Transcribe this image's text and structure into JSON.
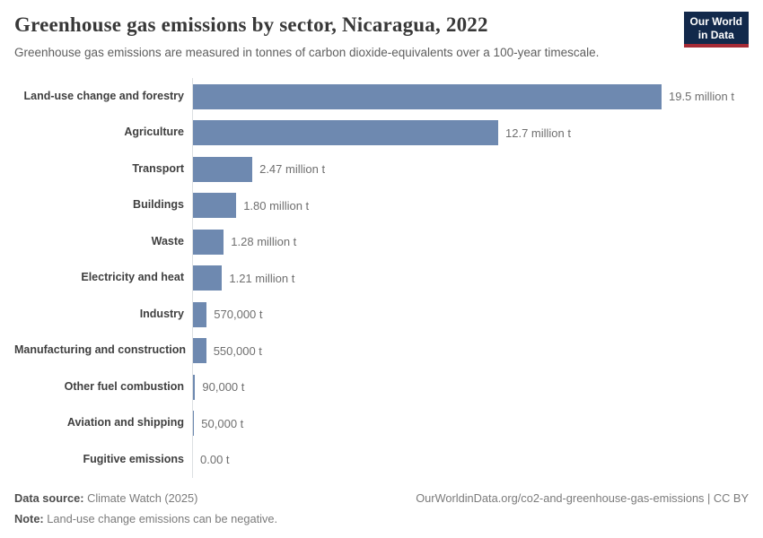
{
  "page": {
    "logo": {
      "line1": "Our World",
      "line2": "in Data",
      "bg_color": "#12294b",
      "accent_color": "#a52a35"
    },
    "header": {
      "title": "Greenhouse gas emissions by sector, Nicaragua, 2022",
      "subtitle": "Greenhouse gas emissions are measured in tonnes of carbon dioxide-equivalents over a 100-year timescale."
    },
    "footer": {
      "data_source_label": "Data source:",
      "data_source_value": "Climate Watch (2025)",
      "note_label": "Note:",
      "note_value": "Land-use change emissions can be negative.",
      "attribution": "OurWorldinData.org/co2-and-greenhouse-gas-emissions | CC BY"
    }
  },
  "chart_data": {
    "type": "bar",
    "orientation": "horizontal",
    "title": "Greenhouse gas emissions by sector, Nicaragua, 2022",
    "subtitle": "Greenhouse gas emissions are measured in tonnes of carbon dioxide-equivalents over a 100-year timescale.",
    "categories": [
      "Land-use change and forestry",
      "Agriculture",
      "Transport",
      "Buildings",
      "Waste",
      "Electricity and heat",
      "Industry",
      "Manufacturing and construction",
      "Other fuel combustion",
      "Aviation and shipping",
      "Fugitive emissions"
    ],
    "values_tonnes": [
      19500000,
      12700000,
      2470000,
      1800000,
      1280000,
      1210000,
      570000,
      550000,
      90000,
      50000,
      0
    ],
    "value_labels": [
      "19.5 million t",
      "12.7 million t",
      "2.47 million t",
      "1.80 million t",
      "1.28 million t",
      "1.21 million t",
      "570,000 t",
      "550,000 t",
      "90,000 t",
      "50,000 t",
      "0.00 t"
    ],
    "xlim_tonnes": [
      0,
      19500000
    ],
    "xlabel": "",
    "ylabel": "",
    "unit_suffix": "t",
    "bar_color": "#6e89b0",
    "axis_line_color": "#dcdfe2",
    "grid": false,
    "legend": "none"
  }
}
